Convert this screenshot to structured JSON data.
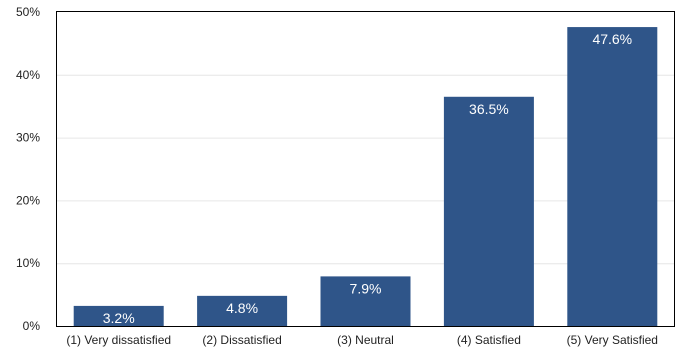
{
  "chart_data": {
    "type": "bar",
    "categories": [
      "(1) Very dissatisfied",
      "(2) Dissatisfied",
      "(3) Neutral",
      "(4) Satisfied",
      "(5) Very Satisfied"
    ],
    "values": [
      3.2,
      4.8,
      7.9,
      36.5,
      47.6
    ],
    "data_labels": [
      "3.2%",
      "4.8%",
      "7.9%",
      "36.5%",
      "47.6%"
    ],
    "ylim": [
      0,
      50
    ],
    "y_ticks": [
      0,
      10,
      20,
      30,
      40,
      50
    ],
    "y_tick_labels": [
      "0%",
      "10%",
      "20%",
      "30%",
      "40%",
      "50%"
    ],
    "grid": true,
    "bar_color": "#2f5589",
    "title": "",
    "xlabel": "",
    "ylabel": ""
  }
}
